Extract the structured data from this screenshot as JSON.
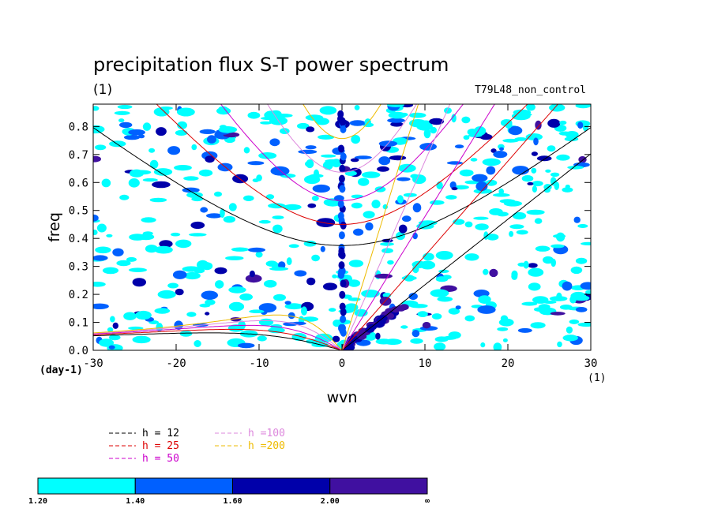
{
  "chart_data": {
    "type": "contour",
    "title": "precipitation flux S-T power spectrum",
    "subtitle_left": "(1)",
    "subtitle_right": "T79L48_non_control",
    "xlabel": "wvn",
    "ylabel": "freq",
    "x_unit_label": "(1)",
    "y_unit_label": "(day-1)",
    "xlim": [
      -30,
      30
    ],
    "ylim": [
      0,
      0.88
    ],
    "x_ticks": [
      -30,
      -20,
      -10,
      0,
      10,
      20,
      30
    ],
    "y_ticks": [
      0.0,
      0.1,
      0.2,
      0.3,
      0.4,
      0.5,
      0.6,
      0.7,
      0.8
    ],
    "y_tick_labels": [
      "0.0",
      "0.1",
      "0.2",
      "0.3",
      "0.4",
      "0.5",
      "0.6",
      "0.7",
      "0.8"
    ],
    "dispersion_curves": [
      {
        "label": "h = 12",
        "h": 12,
        "color": "#000000"
      },
      {
        "label": "h = 25",
        "h": 25,
        "color": "#dd0000"
      },
      {
        "label": "h = 50",
        "h": 50,
        "color": "#cc00cc"
      },
      {
        "label": "h =100",
        "h": 100,
        "color": "#dd88dd"
      },
      {
        "label": "h =200",
        "h": 200,
        "color": "#eebb00"
      }
    ],
    "contour_levels": [
      {
        "min": "1.20",
        "color": "#00ffff"
      },
      {
        "min": "1.40",
        "color": "#0060ff"
      },
      {
        "min": "1.60",
        "color": "#0000aa"
      },
      {
        "min": "2.00",
        "color": "#4010a0"
      }
    ],
    "colorbar_labels": [
      "1.20",
      "1.40",
      "1.60",
      "2.00",
      "∞"
    ]
  }
}
